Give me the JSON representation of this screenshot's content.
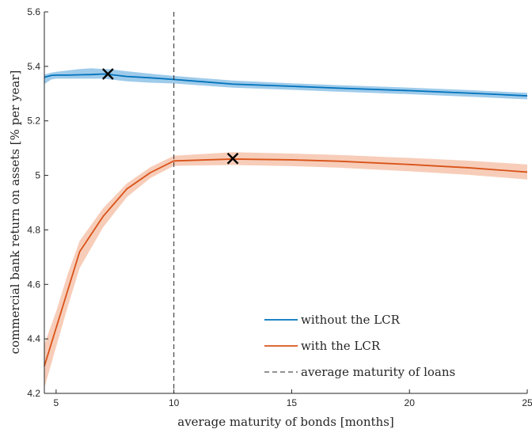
{
  "chart_data": {
    "type": "line",
    "xlabel": "average maturity of bonds [months]",
    "ylabel": "commercial bank return on assets [% per year]",
    "xlim": [
      4.5,
      25
    ],
    "ylim": [
      4.2,
      5.6
    ],
    "xticks": [
      5,
      10,
      15,
      20,
      25
    ],
    "xtick_labels": [
      "5",
      "10",
      "15",
      "20",
      "25"
    ],
    "yticks": [
      4.2,
      4.4,
      4.6,
      4.8,
      5.0,
      5.2,
      5.4,
      5.6
    ],
    "ytick_labels": [
      "4.2",
      "4.4",
      "4.6",
      "4.8",
      "5",
      "5.2",
      "5.4",
      "5.6"
    ],
    "grid": false,
    "legend_position": "bottom-right",
    "series": [
      {
        "name": "without the LCR",
        "color": "#0072BD",
        "band_color": "#9fcbea",
        "x": [
          4.5,
          4.8,
          5.0,
          5.5,
          6.0,
          6.5,
          7.0,
          7.2,
          8.0,
          9.0,
          10.0,
          12.5,
          15.0,
          17.0,
          20.0,
          22.5,
          25.0
        ],
        "y": [
          5.36,
          5.367,
          5.368,
          5.368,
          5.369,
          5.37,
          5.372,
          5.371,
          5.363,
          5.358,
          5.352,
          5.335,
          5.327,
          5.32,
          5.311,
          5.302,
          5.292
        ],
        "band_upper": [
          5.37,
          5.377,
          5.38,
          5.385,
          5.39,
          5.393,
          5.39,
          5.39,
          5.382,
          5.373,
          5.365,
          5.348,
          5.338,
          5.331,
          5.322,
          5.313,
          5.303
        ],
        "band_lower": [
          5.335,
          5.352,
          5.355,
          5.355,
          5.355,
          5.355,
          5.355,
          5.353,
          5.345,
          5.34,
          5.337,
          5.322,
          5.314,
          5.307,
          5.298,
          5.289,
          5.279
        ],
        "marker": {
          "x": 7.2,
          "y": 5.372
        }
      },
      {
        "name": "with the LCR",
        "color": "#D95319",
        "band_color": "#f7cdb9",
        "x": [
          4.5,
          5.0,
          5.5,
          6.0,
          7.0,
          8.0,
          9.0,
          10.0,
          12.5,
          15.0,
          17.0,
          20.0,
          22.5,
          25.0
        ],
        "y": [
          4.3,
          4.44,
          4.58,
          4.72,
          4.85,
          4.95,
          5.01,
          5.053,
          5.06,
          5.057,
          5.052,
          5.04,
          5.028,
          5.012
        ],
        "band_upper": [
          4.38,
          4.5,
          4.64,
          4.76,
          4.88,
          4.97,
          5.03,
          5.072,
          5.085,
          5.08,
          5.075,
          5.064,
          5.054,
          5.04
        ],
        "band_lower": [
          4.22,
          4.37,
          4.52,
          4.66,
          4.81,
          4.92,
          4.99,
          5.035,
          5.038,
          5.034,
          5.028,
          5.015,
          5.002,
          4.985
        ],
        "marker": {
          "x": 12.5,
          "y": 5.062
        }
      },
      {
        "name": "average maturity of loans",
        "color": "#262626",
        "style": "dashed",
        "vertical_x": 10
      }
    ]
  }
}
